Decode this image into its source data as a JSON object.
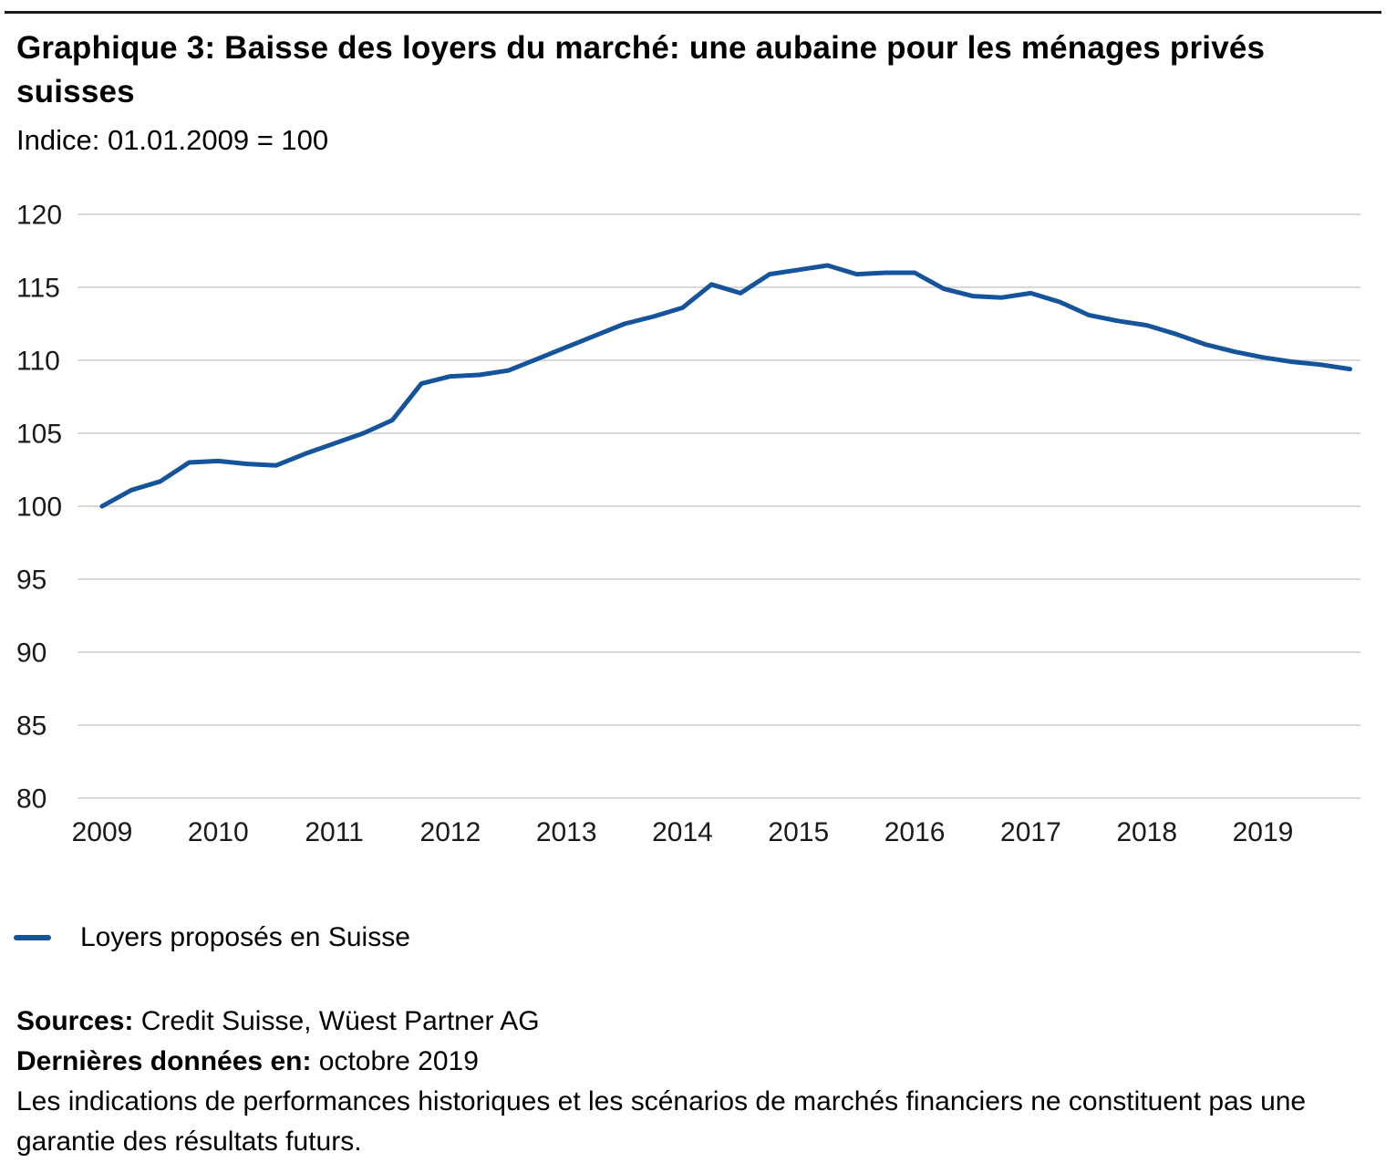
{
  "header": {
    "title": "Graphique 3: Baisse des loyers du marché: une aubaine pour les ménages privés suisses",
    "subtitle": "Indice: 01.01.2009 = 100"
  },
  "legend": {
    "label": "Loyers proposés en Suisse"
  },
  "footer": {
    "sources_label": "Sources:",
    "sources_value": "Credit Suisse, Wüest Partner AG",
    "last_data_label": "Dernières données en:",
    "last_data_value": "octobre 2019",
    "disclaimer": "Les indications de performances historiques et les scénarios de marchés financiers ne constituent pas une garantie des résultats futurs."
  },
  "colors": {
    "line": "#15539B",
    "grid": "#D8D8D8",
    "text": "#1A1A1A",
    "rule": "#1A1A1A"
  },
  "chart_data": {
    "type": "line",
    "title": "Graphique 3: Baisse des loyers du marché: une aubaine pour les ménages privés suisses",
    "subtitle": "Indice: 01.01.2009 = 100",
    "xlabel": "",
    "ylabel": "",
    "grid": "horizontal",
    "legend_position": "bottom-left",
    "ylim": [
      80,
      122
    ],
    "xlim": [
      2009,
      2019.85
    ],
    "y_ticks": [
      80,
      85,
      90,
      95,
      100,
      105,
      110,
      115,
      120
    ],
    "x_tick_labels": [
      "2009",
      "2010",
      "2011",
      "2012",
      "2013",
      "2014",
      "2015",
      "2016",
      "2017",
      "2018",
      "2019"
    ],
    "x": [
      2009.0,
      2009.25,
      2009.5,
      2009.75,
      2010.0,
      2010.25,
      2010.5,
      2010.75,
      2011.0,
      2011.25,
      2011.5,
      2011.75,
      2012.0,
      2012.25,
      2012.5,
      2012.75,
      2013.0,
      2013.25,
      2013.5,
      2013.75,
      2014.0,
      2014.25,
      2014.5,
      2014.75,
      2015.0,
      2015.25,
      2015.5,
      2015.75,
      2016.0,
      2016.25,
      2016.5,
      2016.75,
      2017.0,
      2017.25,
      2017.5,
      2017.75,
      2018.0,
      2018.25,
      2018.5,
      2018.75,
      2019.0,
      2019.25,
      2019.5,
      2019.75
    ],
    "series": [
      {
        "name": "Loyers proposés en Suisse",
        "color": "#15539B",
        "values": [
          100.0,
          101.1,
          101.7,
          103.0,
          103.1,
          102.9,
          102.8,
          103.6,
          104.3,
          105.0,
          105.9,
          108.4,
          108.9,
          109.0,
          109.3,
          110.1,
          110.9,
          111.7,
          112.5,
          113.0,
          113.6,
          115.2,
          114.6,
          115.9,
          116.2,
          116.5,
          115.9,
          116.0,
          116.0,
          114.9,
          114.4,
          114.3,
          114.6,
          114.0,
          113.1,
          112.7,
          112.4,
          111.8,
          111.1,
          110.6,
          110.2,
          109.9,
          109.7,
          109.4
        ]
      }
    ]
  }
}
